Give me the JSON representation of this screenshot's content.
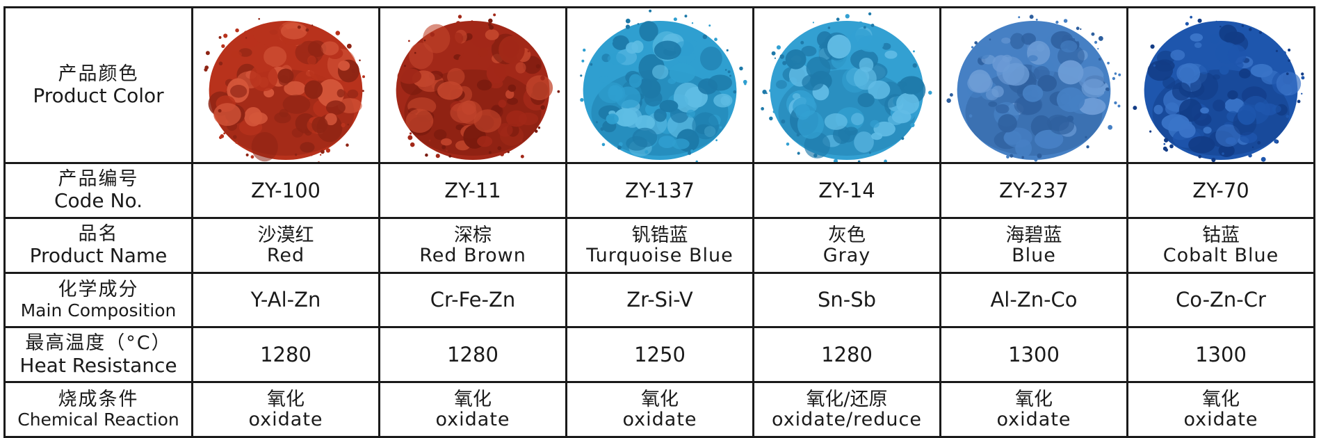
{
  "row_labels": {
    "color": {
      "zh": "产品颜色",
      "en": "Product Color"
    },
    "code": {
      "zh": "产品编号",
      "en": "Code No."
    },
    "name": {
      "zh": "品名",
      "en": "Product Name"
    },
    "composition": {
      "zh": "化学成分",
      "en": "Main Composition"
    },
    "heat": {
      "zh": "最高温度（°C）",
      "en": "Heat Resistance"
    },
    "reaction": {
      "zh": "烧成条件",
      "en": "Chemical Reaction"
    }
  },
  "products": [
    {
      "code": "ZY-100",
      "name_zh": "沙漠红",
      "name_en": "Red",
      "composition": "Y-Al-Zn",
      "heat": "1280",
      "reaction_zh": "氧化",
      "reaction_en": "oxidate",
      "color": "#b8321c",
      "shade": "#8e2414",
      "highlight": "#d4563a"
    },
    {
      "code": "ZY-11",
      "name_zh": "深棕",
      "name_en": "Red Brown",
      "composition": "Cr-Fe-Zn",
      "heat": "1280",
      "reaction_zh": "氧化",
      "reaction_en": "oxidate",
      "color": "#a22818",
      "shade": "#7a1a0e",
      "highlight": "#c2452c"
    },
    {
      "code": "ZY-137",
      "name_zh": "钒锆蓝",
      "name_en": "Turquoise Blue",
      "composition": "Zr-Si-V",
      "heat": "1250",
      "reaction_zh": "氧化",
      "reaction_en": "oxidate",
      "color": "#2f9fd0",
      "shade": "#1d79a8",
      "highlight": "#5fbde4"
    },
    {
      "code": "ZY-14",
      "name_zh": "灰色",
      "name_en": "Gray",
      "composition": "Sn-Sb",
      "heat": "1280",
      "reaction_zh": "氧化/还原",
      "reaction_en": "oxidate/reduce",
      "color": "#33a0d2",
      "shade": "#1f7aaa",
      "highlight": "#63bde6"
    },
    {
      "code": "ZY-237",
      "name_zh": "海碧蓝",
      "name_en": "Blue",
      "composition": "Al-Zn-Co",
      "heat": "1300",
      "reaction_zh": "氧化",
      "reaction_en": "oxidate",
      "color": "#4680c4",
      "shade": "#2e5f9e",
      "highlight": "#6d9cd6"
    },
    {
      "code": "ZY-70",
      "name_zh": "钴蓝",
      "name_en": "Cobalt Blue",
      "composition": "Co-Zn-Cr",
      "heat": "1300",
      "reaction_zh": "氧化",
      "reaction_en": "oxidate",
      "color": "#1e56ad",
      "shade": "#123c86",
      "highlight": "#3a74c8"
    }
  ]
}
